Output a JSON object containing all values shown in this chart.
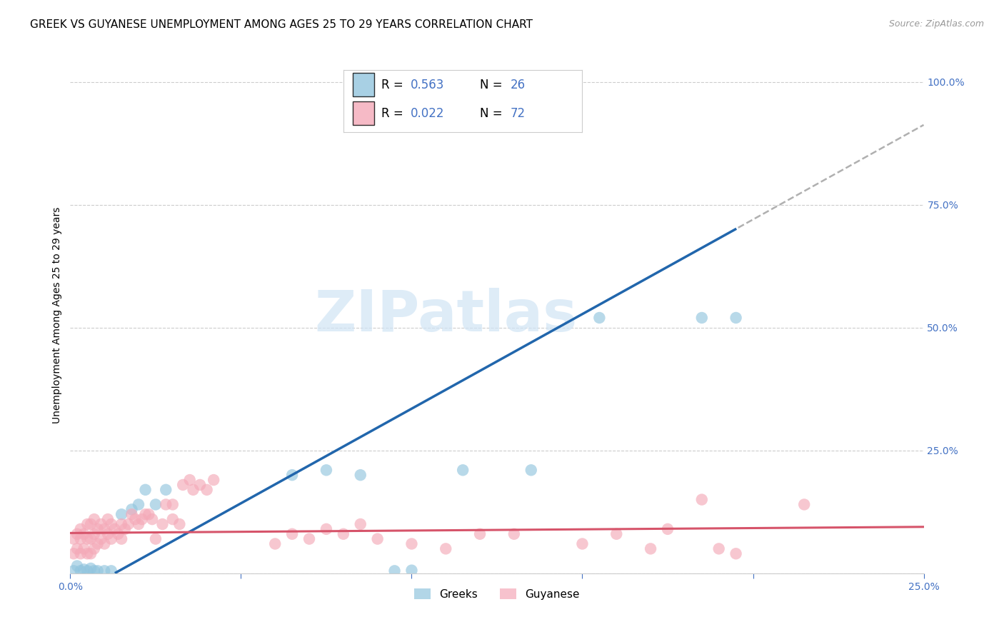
{
  "title": "GREEK VS GUYANESE UNEMPLOYMENT AMONG AGES 25 TO 29 YEARS CORRELATION CHART",
  "source": "Source: ZipAtlas.com",
  "ylabel": "Unemployment Among Ages 25 to 29 years",
  "xlim": [
    0.0,
    0.25
  ],
  "ylim": [
    0.0,
    1.05
  ],
  "greek_color": "#92c5de",
  "guyanese_color": "#f4a9b8",
  "greek_line_color": "#2166ac",
  "guyanese_line_color": "#d6546a",
  "dashed_line_color": "#b0b0b0",
  "greek_R": 0.563,
  "greek_N": 26,
  "guyanese_R": 0.022,
  "guyanese_N": 72,
  "background_color": "#ffffff",
  "grid_color": "#cccccc",
  "tick_color": "#4472c4",
  "watermark_color": "#d0e4f5",
  "greek_scatter_x": [
    0.001,
    0.002,
    0.003,
    0.004,
    0.005,
    0.006,
    0.007,
    0.008,
    0.01,
    0.012,
    0.015,
    0.018,
    0.02,
    0.022,
    0.025,
    0.028,
    0.065,
    0.075,
    0.085,
    0.095,
    0.1,
    0.115,
    0.135,
    0.155,
    0.185,
    0.195
  ],
  "greek_scatter_y": [
    0.005,
    0.015,
    0.005,
    0.008,
    0.005,
    0.01,
    0.005,
    0.005,
    0.005,
    0.005,
    0.12,
    0.13,
    0.14,
    0.17,
    0.14,
    0.17,
    0.2,
    0.21,
    0.2,
    0.005,
    0.006,
    0.21,
    0.21,
    0.52,
    0.52,
    0.52
  ],
  "guyanese_scatter_x": [
    0.001,
    0.001,
    0.002,
    0.002,
    0.003,
    0.003,
    0.003,
    0.004,
    0.004,
    0.005,
    0.005,
    0.005,
    0.006,
    0.006,
    0.006,
    0.007,
    0.007,
    0.007,
    0.008,
    0.008,
    0.009,
    0.009,
    0.01,
    0.01,
    0.011,
    0.011,
    0.012,
    0.012,
    0.013,
    0.014,
    0.015,
    0.015,
    0.016,
    0.017,
    0.018,
    0.019,
    0.02,
    0.021,
    0.022,
    0.023,
    0.024,
    0.025,
    0.027,
    0.028,
    0.03,
    0.03,
    0.032,
    0.033,
    0.035,
    0.036,
    0.038,
    0.04,
    0.042,
    0.06,
    0.065,
    0.07,
    0.075,
    0.08,
    0.085,
    0.09,
    0.1,
    0.11,
    0.12,
    0.13,
    0.15,
    0.16,
    0.17,
    0.175,
    0.185,
    0.19,
    0.195,
    0.215
  ],
  "guyanese_scatter_y": [
    0.04,
    0.07,
    0.05,
    0.08,
    0.04,
    0.07,
    0.09,
    0.05,
    0.08,
    0.04,
    0.07,
    0.1,
    0.04,
    0.07,
    0.1,
    0.05,
    0.08,
    0.11,
    0.06,
    0.09,
    0.07,
    0.1,
    0.06,
    0.09,
    0.08,
    0.11,
    0.07,
    0.1,
    0.09,
    0.08,
    0.07,
    0.1,
    0.09,
    0.1,
    0.12,
    0.11,
    0.1,
    0.11,
    0.12,
    0.12,
    0.11,
    0.07,
    0.1,
    0.14,
    0.11,
    0.14,
    0.1,
    0.18,
    0.19,
    0.17,
    0.18,
    0.17,
    0.19,
    0.06,
    0.08,
    0.07,
    0.09,
    0.08,
    0.1,
    0.07,
    0.06,
    0.05,
    0.08,
    0.08,
    0.06,
    0.08,
    0.05,
    0.09,
    0.15,
    0.05,
    0.04,
    0.14
  ],
  "title_fontsize": 11,
  "axis_label_fontsize": 10,
  "tick_fontsize": 10,
  "legend_fontsize": 12
}
